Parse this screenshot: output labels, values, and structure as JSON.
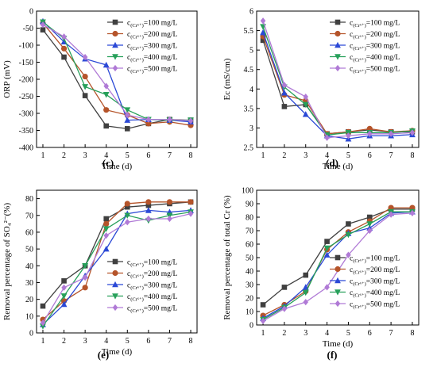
{
  "legend": {
    "prefix": "c",
    "subscript": "(Cr⁶⁺)",
    "entries": [
      "=100 mg/L",
      "=200 mg/L",
      "=300 mg/L",
      "=400 mg/L",
      "=500 mg/L"
    ]
  },
  "series_style": [
    {
      "color": "#404040",
      "marker": "square"
    },
    {
      "color": "#b5542a",
      "marker": "circle"
    },
    {
      "color": "#2b49d6",
      "marker": "triangle-up"
    },
    {
      "color": "#27a05a",
      "marker": "triangle-down"
    },
    {
      "color": "#b07ad6",
      "marker": "diamond"
    }
  ],
  "chart_data": [
    {
      "panel_label": "(c)",
      "type": "line",
      "xlabel": "Time (d)",
      "ylabel": "ORP (mV)",
      "x": [
        1,
        2,
        3,
        4,
        5,
        6,
        7,
        8
      ],
      "xlim": [
        0.7,
        8.3
      ],
      "ylim": [
        -400,
        0
      ],
      "yticks": [
        0,
        -50,
        -100,
        -150,
        -200,
        -250,
        -300,
        -350,
        -400
      ],
      "legend_position": "right",
      "series": [
        {
          "name": "c(Cr⁶⁺)=100 mg/L",
          "values": [
            -55,
            -135,
            -248,
            -337,
            -345,
            -330,
            -318,
            -320
          ]
        },
        {
          "name": "c(Cr⁶⁺)=200 mg/L",
          "values": [
            -35,
            -110,
            -192,
            -290,
            -305,
            -330,
            -325,
            -335
          ]
        },
        {
          "name": "c(Cr⁶⁺)=300 mg/L",
          "values": [
            -30,
            -90,
            -140,
            -158,
            -320,
            -318,
            -320,
            -325
          ]
        },
        {
          "name": "c(Cr⁶⁺)=400 mg/L",
          "values": [
            -32,
            -80,
            -222,
            -245,
            -290,
            -318,
            -320,
            -320
          ]
        },
        {
          "name": "c(Cr⁶⁺)=500 mg/L",
          "values": [
            -40,
            -75,
            -135,
            -220,
            -305,
            -318,
            -318,
            -322
          ]
        }
      ]
    },
    {
      "panel_label": "(d)",
      "type": "line",
      "xlabel": "Time (d)",
      "ylabel": "Ec (mS/cm)",
      "x": [
        1,
        2,
        3,
        4,
        5,
        6,
        7,
        8
      ],
      "xlim": [
        0.7,
        8.3
      ],
      "ylim": [
        2.5,
        6.0
      ],
      "yticks": [
        2.5,
        3.0,
        3.5,
        4.0,
        4.5,
        5.0,
        5.5,
        6.0
      ],
      "legend_position": "right",
      "series": [
        {
          "name": "c(Cr⁶⁺)=100 mg/L",
          "values": [
            5.25,
            3.55,
            3.6,
            2.85,
            2.9,
            2.95,
            2.9,
            2.9
          ]
        },
        {
          "name": "c(Cr⁶⁺)=200 mg/L",
          "values": [
            5.35,
            3.85,
            3.7,
            2.85,
            2.9,
            2.98,
            2.9,
            2.93
          ]
        },
        {
          "name": "c(Cr⁶⁺)=300 mg/L",
          "values": [
            5.45,
            3.9,
            3.35,
            2.8,
            2.72,
            2.8,
            2.8,
            2.83
          ]
        },
        {
          "name": "c(Cr⁶⁺)=400 mg/L",
          "values": [
            5.6,
            4.05,
            3.6,
            2.82,
            2.88,
            2.88,
            2.88,
            2.92
          ]
        },
        {
          "name": "c(Cr⁶⁺)=500 mg/L",
          "values": [
            5.75,
            4.1,
            3.8,
            2.75,
            2.8,
            2.85,
            2.85,
            2.88
          ]
        }
      ]
    },
    {
      "panel_label": "(e)",
      "type": "line",
      "xlabel": "Time (d)",
      "ylabel": "Removal percentage of SO₄²⁻(%)",
      "x": [
        1,
        2,
        3,
        4,
        5,
        6,
        7,
        8
      ],
      "xlim": [
        0.7,
        8.3
      ],
      "ylim": [
        0,
        85
      ],
      "yticks": [
        0,
        10,
        20,
        30,
        40,
        50,
        60,
        70,
        80
      ],
      "legend_position": "lower right",
      "series": [
        {
          "name": "c(Cr⁶⁺)=100 mg/L",
          "values": [
            16,
            31,
            40,
            68,
            75,
            76,
            77,
            78
          ]
        },
        {
          "name": "c(Cr⁶⁺)=200 mg/L",
          "values": [
            8,
            19,
            27,
            65,
            77,
            78,
            78,
            78
          ]
        },
        {
          "name": "c(Cr⁶⁺)=300 mg/L",
          "values": [
            5,
            17,
            34,
            50,
            71,
            73,
            72,
            73
          ]
        },
        {
          "name": "c(Cr⁶⁺)=400 mg/L",
          "values": [
            4,
            22,
            40,
            62,
            70,
            67,
            70,
            72
          ]
        },
        {
          "name": "c(Cr⁶⁺)=500 mg/L",
          "values": [
            6,
            27,
            33,
            58,
            66,
            68,
            68,
            71
          ]
        }
      ]
    },
    {
      "panel_label": "(f)",
      "type": "line",
      "xlabel": "Time (d)",
      "ylabel": "Removal percentage of total Cr (%)",
      "x": [
        1,
        2,
        3,
        4,
        5,
        6,
        7,
        8
      ],
      "xlim": [
        0.7,
        8.3
      ],
      "ylim": [
        0,
        100
      ],
      "yticks": [
        0,
        10,
        20,
        30,
        40,
        50,
        60,
        70,
        80,
        90,
        100
      ],
      "legend_position": "lower right",
      "series": [
        {
          "name": "c(Cr⁶⁺)=100 mg/L",
          "values": [
            15,
            28,
            37,
            62,
            75,
            80,
            86,
            86
          ]
        },
        {
          "name": "c(Cr⁶⁺)=200 mg/L",
          "values": [
            7,
            15,
            25,
            56,
            69,
            77,
            87,
            87
          ]
        },
        {
          "name": "c(Cr⁶⁺)=300 mg/L",
          "values": [
            5,
            14,
            28,
            52,
            68,
            72,
            83,
            84
          ]
        },
        {
          "name": "c(Cr⁶⁺)=400 mg/L",
          "values": [
            4,
            13,
            24,
            57,
            67,
            75,
            84,
            84
          ]
        },
        {
          "name": "c(Cr⁶⁺)=500 mg/L",
          "values": [
            3,
            12,
            17,
            28,
            52,
            70,
            82,
            83
          ]
        }
      ]
    }
  ]
}
